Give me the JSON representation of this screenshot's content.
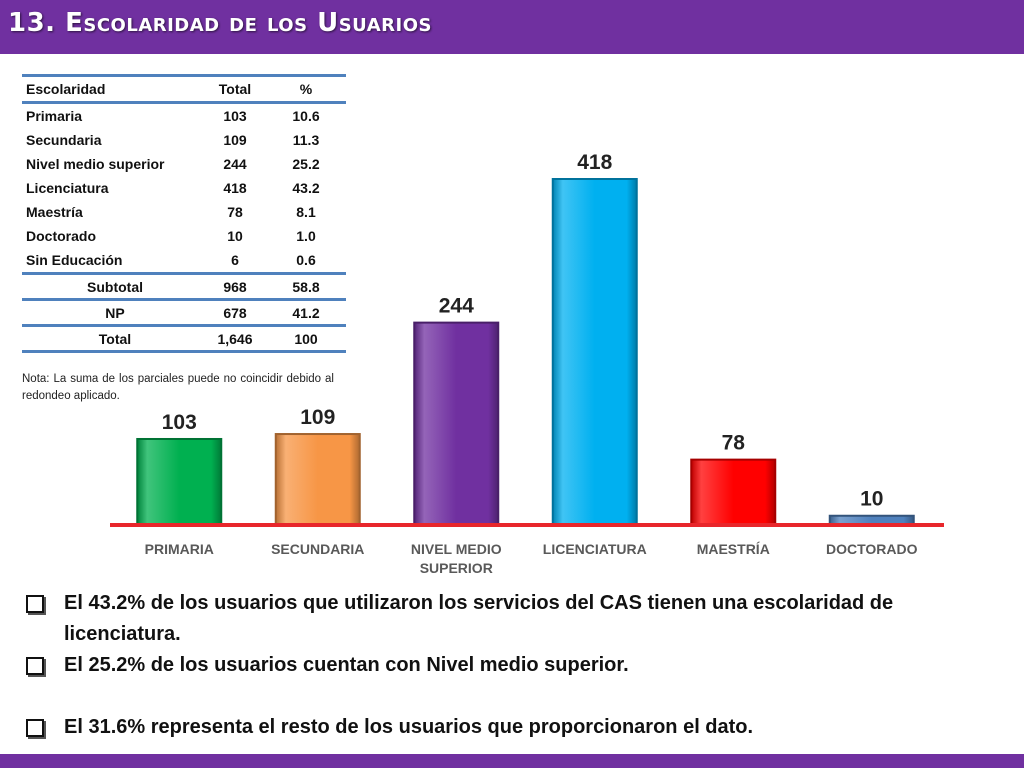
{
  "slide": {
    "title": "13. Escolaridad de los Usuarios"
  },
  "table": {
    "headers": [
      "Escolaridad",
      "Total",
      "%"
    ],
    "rows": [
      [
        "Primaria",
        "103",
        "10.6"
      ],
      [
        "Secundaria",
        "109",
        "11.3"
      ],
      [
        "Nivel medio superior",
        "244",
        "25.2"
      ],
      [
        "Licenciatura",
        "418",
        "43.2"
      ],
      [
        "Maestría",
        "78",
        "8.1"
      ],
      [
        "Doctorado",
        "10",
        "1.0"
      ],
      [
        "Sin Educación",
        "6",
        "0.6"
      ]
    ],
    "subtotal": [
      "Subtotal",
      "968",
      "58.8"
    ],
    "np": [
      "NP",
      "678",
      "41.2"
    ],
    "total": [
      "Total",
      "1,646",
      "100"
    ]
  },
  "nota": "Nota: La suma de los parciales puede no coincidir debido al redondeo aplicado.",
  "chart_data": {
    "type": "bar",
    "title": "",
    "xlabel": "",
    "ylabel": "",
    "categories": [
      "PRIMARIA",
      "SECUNDARIA",
      "NIVEL MEDIO SUPERIOR",
      "LICENCIATURA",
      "MAESTRÍA",
      "DOCTORADO"
    ],
    "values": [
      103,
      109,
      244,
      418,
      78,
      10
    ],
    "colors": [
      "#00b050",
      "#f79646",
      "#7030a0",
      "#00b0f0",
      "#ff0000",
      "#4f81bd"
    ],
    "baseline_color": "#e8262b",
    "ylim": [
      0,
      418
    ],
    "grid": false,
    "legend": "none"
  },
  "bullets": [
    "El 43.2% de los usuarios que utilizaron los servicios del CAS tienen una escolaridad de licenciatura.",
    "El 25.2% de los usuarios cuentan con Nivel medio superior.",
    "El  31.6% representa el resto de los usuarios que proporcionaron el dato."
  ]
}
